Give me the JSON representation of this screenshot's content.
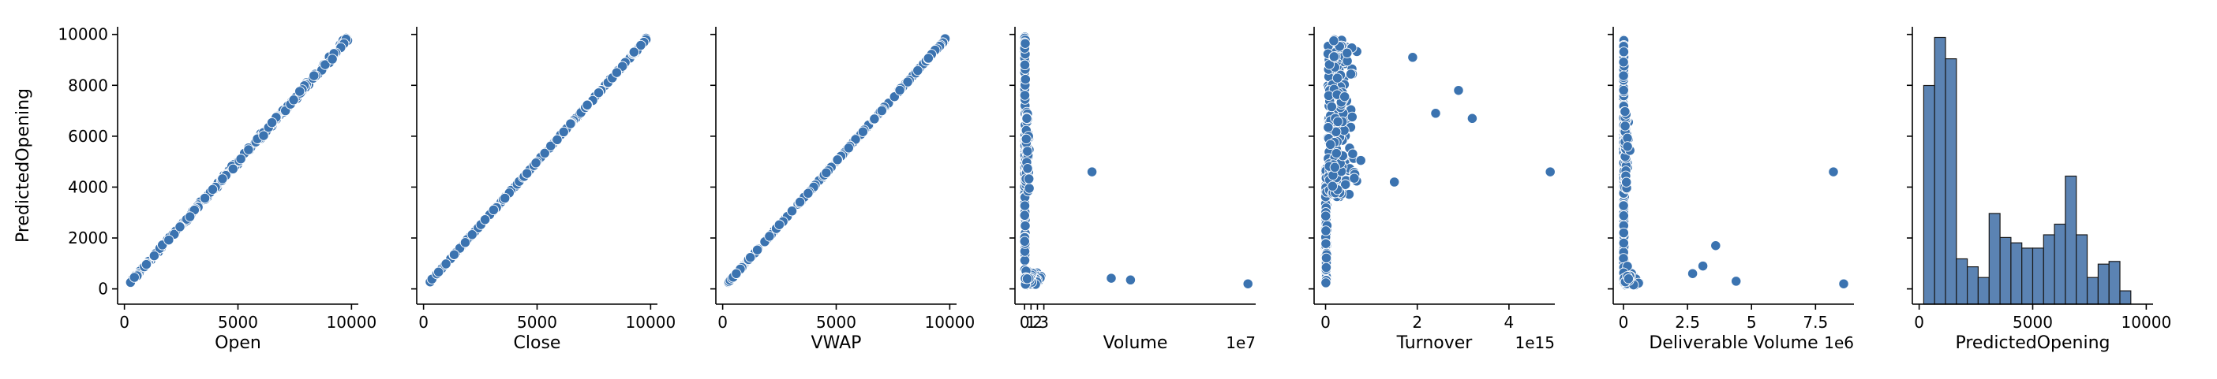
{
  "colors": {
    "point": "#3b73b0",
    "bar": "#5b83b3",
    "point_edge": "#ffffff"
  },
  "chart_data": [
    {
      "type": "scatter",
      "xlabel": "Open",
      "ylabel": "PredictedOpening",
      "xlim": [
        -300,
        10300
      ],
      "xticks": [
        0,
        5000,
        10000
      ],
      "ylim": [
        -600,
        10300
      ],
      "yticks": [
        0,
        2000,
        4000,
        6000,
        8000,
        10000
      ],
      "offset_text": "",
      "pattern": "linear_spread",
      "points": [
        [
          300,
          300
        ],
        [
          800,
          820
        ],
        [
          1500,
          1450
        ],
        [
          2200,
          2250
        ],
        [
          2900,
          2850
        ],
        [
          3500,
          3550
        ],
        [
          4100,
          4000
        ],
        [
          4600,
          4650
        ],
        [
          5000,
          4900
        ],
        [
          5500,
          5450
        ],
        [
          6000,
          6100
        ],
        [
          6500,
          6400
        ],
        [
          7000,
          7050
        ],
        [
          7500,
          7450
        ],
        [
          8000,
          8100
        ],
        [
          8500,
          8400
        ],
        [
          9000,
          9050
        ],
        [
          9500,
          9600
        ],
        [
          9800,
          9850
        ]
      ]
    },
    {
      "type": "scatter",
      "xlabel": "Close",
      "ylabel": "",
      "xlim": [
        -300,
        10300
      ],
      "xticks": [
        0,
        5000,
        10000
      ],
      "ylim": [
        -600,
        10300
      ],
      "yticks": [
        0,
        2000,
        4000,
        6000,
        8000,
        10000
      ],
      "offset_text": "",
      "pattern": "linear_tight",
      "points": [
        [
          300,
          300
        ],
        [
          1000,
          1000
        ],
        [
          2000,
          2000
        ],
        [
          3000,
          3000
        ],
        [
          4000,
          4000
        ],
        [
          5000,
          5000
        ],
        [
          6000,
          6000
        ],
        [
          7000,
          7000
        ],
        [
          8000,
          8000
        ],
        [
          9000,
          9000
        ],
        [
          9800,
          9850
        ]
      ]
    },
    {
      "type": "scatter",
      "xlabel": "VWAP",
      "ylabel": "",
      "xlim": [
        -300,
        10300
      ],
      "xticks": [
        0,
        5000,
        10000
      ],
      "ylim": [
        -600,
        10300
      ],
      "yticks": [
        0,
        2000,
        4000,
        6000,
        8000,
        10000
      ],
      "offset_text": "",
      "pattern": "linear_tight",
      "points": [
        [
          300,
          300
        ],
        [
          1000,
          1000
        ],
        [
          2000,
          2000
        ],
        [
          3000,
          3000
        ],
        [
          4000,
          4000
        ],
        [
          5000,
          5000
        ],
        [
          6000,
          6000
        ],
        [
          7000,
          7000
        ],
        [
          8000,
          8000
        ],
        [
          9000,
          9000
        ],
        [
          9800,
          9850
        ]
      ]
    },
    {
      "type": "scatter",
      "xlabel": "Volume",
      "ylabel": "",
      "xlim": [
        -1.5,
        36
      ],
      "xticks": [
        0,
        1,
        2,
        3
      ],
      "ylim": [
        -600,
        10300
      ],
      "yticks": [
        0,
        2000,
        4000,
        6000,
        8000,
        10000
      ],
      "offset_text": "1e7",
      "pattern": "l_shape",
      "outliers": [
        [
          10.5,
          4600
        ],
        [
          34.8,
          200
        ],
        [
          16.5,
          350
        ],
        [
          13.5,
          420
        ]
      ]
    },
    {
      "type": "scatter",
      "xlabel": "Turnover",
      "ylabel": "",
      "xlim": [
        -0.25,
        5.0
      ],
      "xticks": [
        0,
        2,
        4
      ],
      "ylim": [
        -600,
        10300
      ],
      "yticks": [
        0,
        2000,
        4000,
        6000,
        8000,
        10000
      ],
      "offset_text": "1e15",
      "pattern": "cloud",
      "outliers": [
        [
          4.9,
          4600
        ],
        [
          3.2,
          6700
        ],
        [
          2.9,
          7800
        ],
        [
          2.4,
          6900
        ],
        [
          1.9,
          9100
        ],
        [
          1.5,
          4200
        ]
      ]
    },
    {
      "type": "scatter",
      "xlabel": "Deliverable Volume",
      "ylabel": "",
      "xlim": [
        -0.4,
        9.0
      ],
      "xticks": [
        0.0,
        2.5,
        5.0,
        7.5
      ],
      "ylim": [
        -600,
        10300
      ],
      "yticks": [
        0,
        2000,
        4000,
        6000,
        8000,
        10000
      ],
      "offset_text": "1e6",
      "pattern": "l_shape",
      "outliers": [
        [
          8.2,
          4600
        ],
        [
          8.6,
          200
        ],
        [
          4.4,
          300
        ],
        [
          3.6,
          1700
        ],
        [
          3.1,
          900
        ],
        [
          2.7,
          600
        ]
      ]
    },
    {
      "type": "bar",
      "xlabel": "PredictedOpening",
      "ylabel": "",
      "xlim": [
        -300,
        10300
      ],
      "xticks": [
        0,
        5000,
        10000
      ],
      "offset_text": "",
      "bin_edges": [
        200,
        680,
        1160,
        1640,
        2120,
        2600,
        3080,
        3560,
        4040,
        4520,
        5000,
        5480,
        5960,
        6440,
        6920,
        7400,
        7880,
        8360,
        8840,
        9320,
        9800
      ],
      "counts": [
        82,
        100,
        92,
        17,
        14,
        10,
        34,
        25,
        23,
        21,
        21,
        26,
        30,
        48,
        26,
        10,
        15,
        16,
        5,
        0
      ],
      "ymax": 104
    }
  ]
}
